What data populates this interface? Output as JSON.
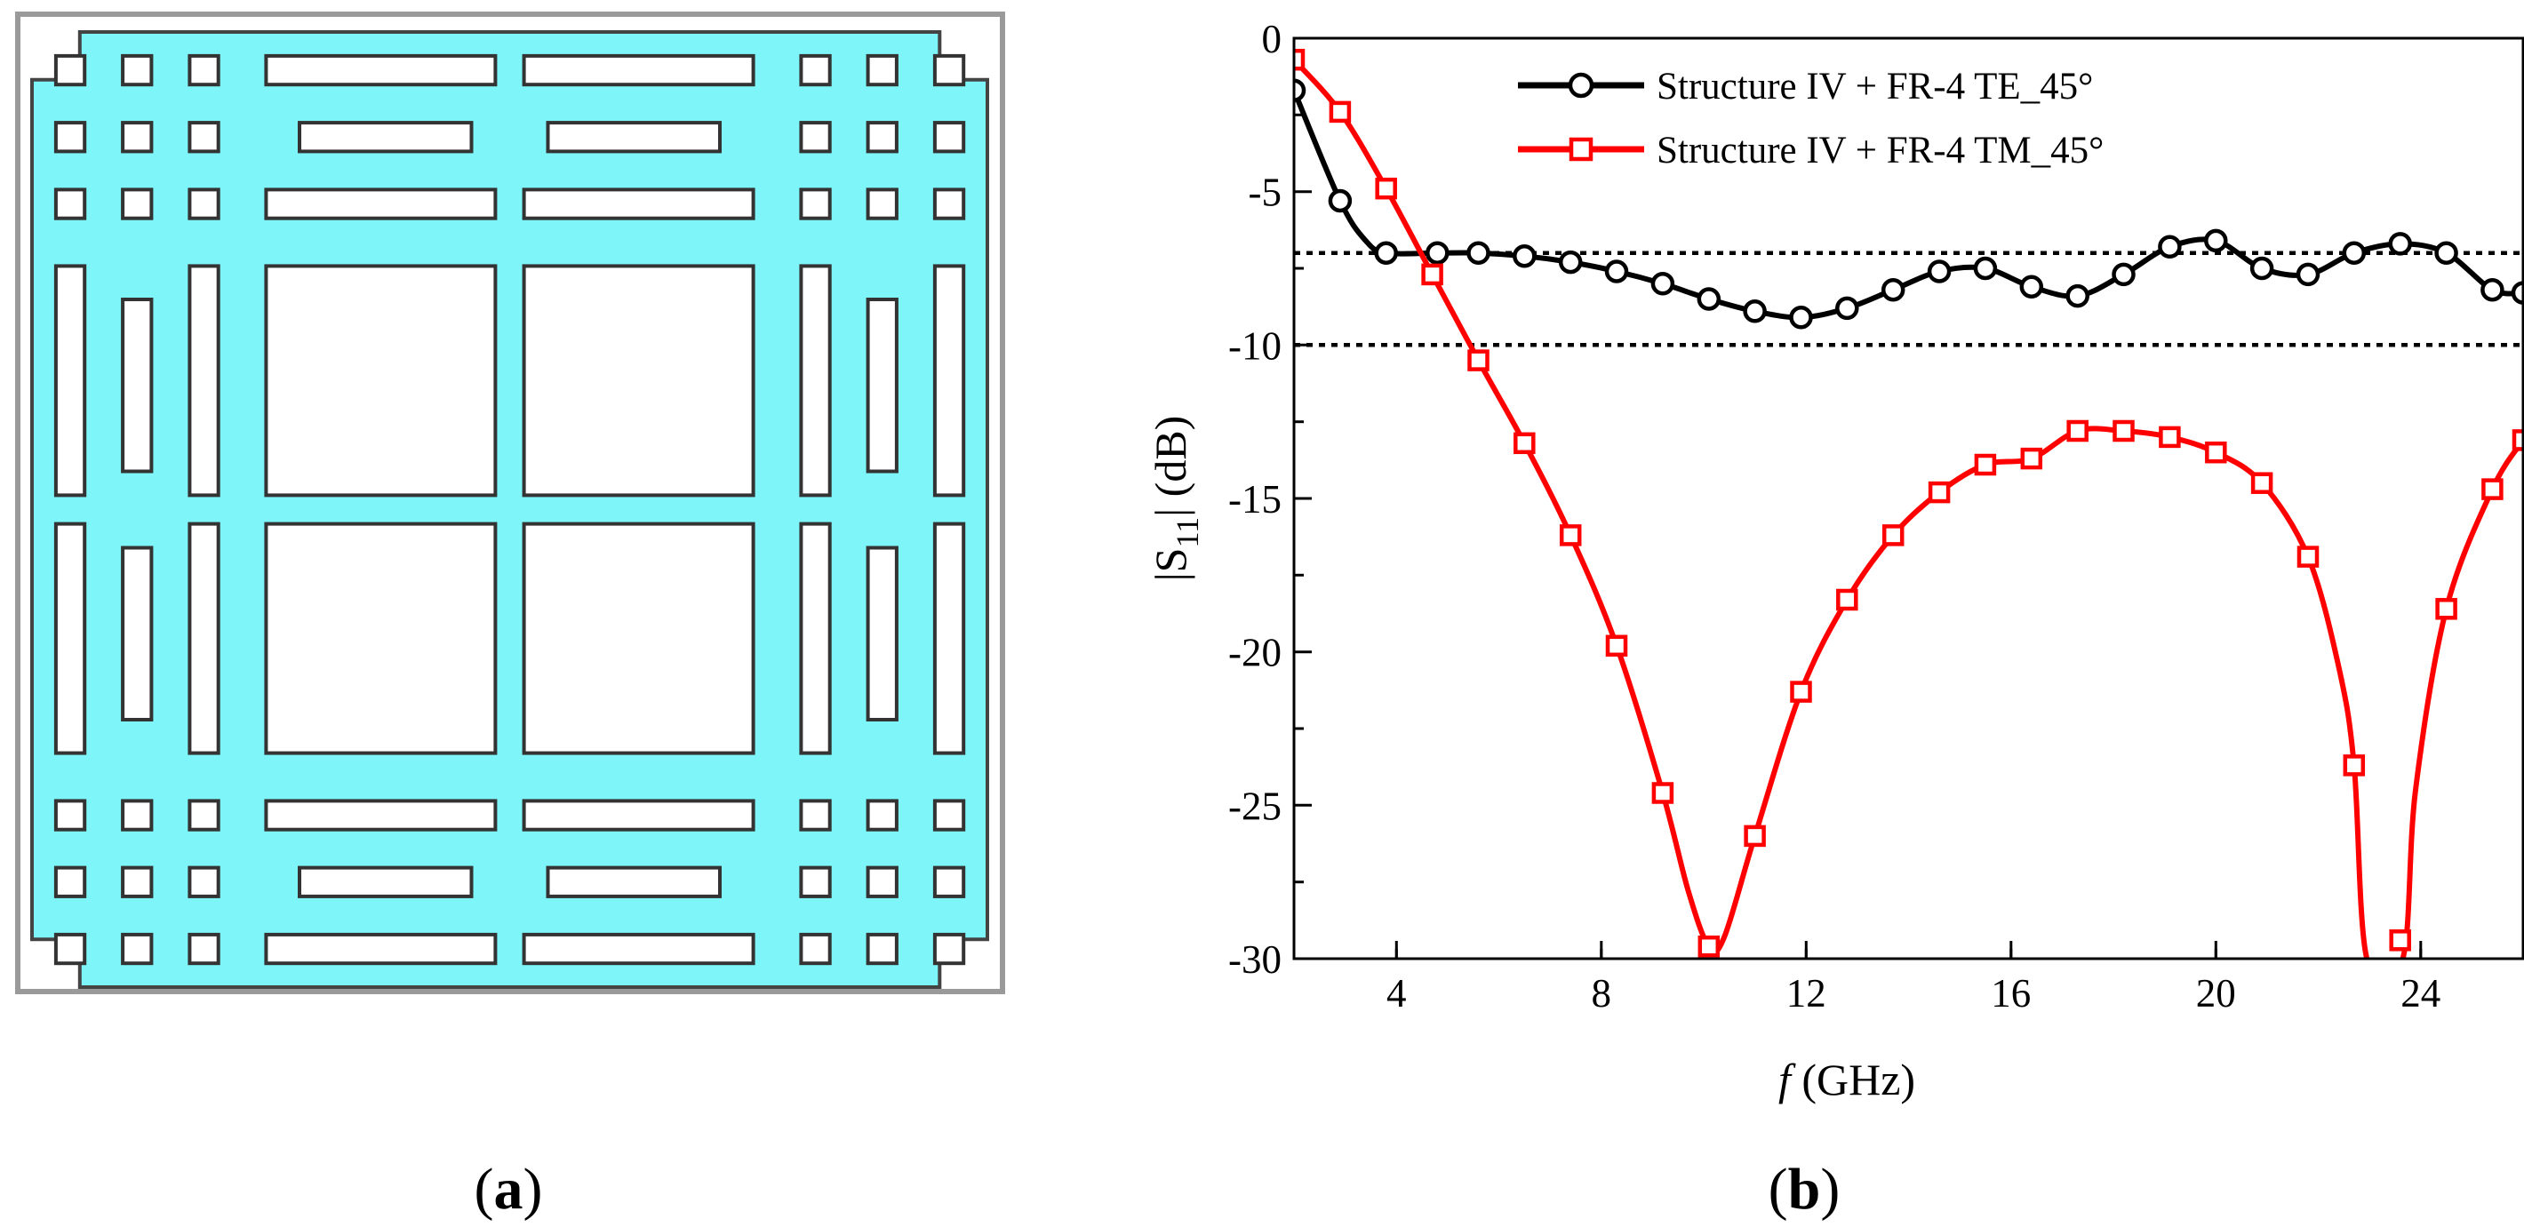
{
  "panels": {
    "a": {
      "caption_open": "(",
      "caption_letter": "a",
      "caption_close": ")"
    },
    "b": {
      "caption_open": "(",
      "caption_letter": "b",
      "caption_close": ")"
    }
  },
  "colors": {
    "metal": "#7ef5f8",
    "substrate_shadow": "#aaaaaa",
    "te": "#000000",
    "tm": "#ff0000"
  },
  "chart_data": {
    "type": "line",
    "xlabel_italic": "f",
    "xlabel_rest": " (GHz)",
    "ylabel_text": "|S",
    "ylabel_sub": "11",
    "ylabel_rest": "| (dB)",
    "xlim": [
      2,
      26
    ],
    "ylim": [
      -30,
      0
    ],
    "xticks": [
      4,
      8,
      12,
      16,
      20,
      24
    ],
    "xtick_labels": [
      "4",
      "8",
      "12",
      "16",
      "20",
      "24"
    ],
    "yticks": [
      0,
      -5,
      -10,
      -15,
      -20,
      -25,
      -30
    ],
    "ytick_labels": [
      "0",
      "-5",
      "-10",
      "-15",
      "-20",
      "-25",
      "-30"
    ],
    "reference_lines": [
      -7,
      -10
    ],
    "series": [
      {
        "name": "Structure IV + FR-4 TE_45°",
        "marker": "circle",
        "x": [
          2,
          2.9,
          3.8,
          4.8,
          5.6,
          6.5,
          7.4,
          8.3,
          9.2,
          10.1,
          11,
          11.9,
          12.8,
          13.7,
          14.6,
          15.5,
          16.4,
          17.3,
          18.2,
          19.1,
          20,
          20.9,
          21.8,
          22.7,
          23.6,
          24.5,
          25.4,
          26
        ],
        "y": [
          -1.7,
          -5.3,
          -7.0,
          -7.0,
          -7.0,
          -7.1,
          -7.3,
          -7.6,
          -8.0,
          -8.5,
          -8.9,
          -9.1,
          -8.8,
          -8.2,
          -7.6,
          -7.5,
          -8.1,
          -8.4,
          -7.7,
          -6.8,
          -6.6,
          -7.5,
          -7.7,
          -7.0,
          -6.7,
          -7.0,
          -8.2,
          -8.3
        ],
        "curve": [
          [
            2,
            -1.7
          ],
          [
            2.9,
            -5.3
          ],
          [
            3.4,
            -6.6
          ],
          [
            3.8,
            -7.0
          ],
          [
            4.8,
            -7.0
          ],
          [
            5.6,
            -7.0
          ],
          [
            6.5,
            -7.1
          ],
          [
            7.4,
            -7.3
          ],
          [
            8.3,
            -7.6
          ],
          [
            9.2,
            -8.0
          ],
          [
            10.1,
            -8.5
          ],
          [
            11,
            -8.9
          ],
          [
            11.9,
            -9.1
          ],
          [
            12.8,
            -8.8
          ],
          [
            13.7,
            -8.2
          ],
          [
            14.6,
            -7.6
          ],
          [
            15.5,
            -7.5
          ],
          [
            16.4,
            -8.1
          ],
          [
            17.3,
            -8.4
          ],
          [
            18.2,
            -7.7
          ],
          [
            19.1,
            -6.8
          ],
          [
            20,
            -6.6
          ],
          [
            20.9,
            -7.5
          ],
          [
            21.8,
            -7.7
          ],
          [
            22.7,
            -7.0
          ],
          [
            23.6,
            -6.7
          ],
          [
            24.5,
            -7.0
          ],
          [
            25.4,
            -8.2
          ],
          [
            26,
            -8.3
          ]
        ]
      },
      {
        "name": "Structure IV + FR-4 TM_45°",
        "marker": "square",
        "x": [
          2,
          2.9,
          3.8,
          4.7,
          5.6,
          6.5,
          7.4,
          8.3,
          9.2,
          10.1,
          11,
          11.9,
          12.8,
          13.7,
          14.6,
          15.5,
          16.4,
          17.3,
          18.2,
          19.1,
          20,
          20.9,
          21.8,
          22.7,
          23.6,
          24.5,
          25.4,
          26
        ],
        "y": [
          -0.7,
          -2.4,
          -4.9,
          -7.7,
          -10.5,
          -13.2,
          -16.2,
          -19.8,
          -24.6,
          -29.6,
          -26.0,
          -21.3,
          -18.3,
          -16.2,
          -14.8,
          -13.9,
          -13.7,
          -12.8,
          -12.8,
          -13.0,
          -13.5,
          -14.5,
          -16.9,
          -23.7,
          -29.4,
          -18.6,
          -14.7,
          -13.1
        ],
        "curve": [
          [
            2,
            -0.7
          ],
          [
            2.9,
            -2.4
          ],
          [
            3.8,
            -4.9
          ],
          [
            4.7,
            -7.7
          ],
          [
            5.6,
            -10.5
          ],
          [
            6.5,
            -13.2
          ],
          [
            7.4,
            -16.2
          ],
          [
            8.3,
            -19.8
          ],
          [
            9.2,
            -24.6
          ],
          [
            9.7,
            -27.8
          ],
          [
            10.1,
            -29.6
          ],
          [
            10.4,
            -29.3
          ],
          [
            11,
            -26.0
          ],
          [
            11.9,
            -21.3
          ],
          [
            12.8,
            -18.3
          ],
          [
            13.7,
            -16.2
          ],
          [
            14.6,
            -14.8
          ],
          [
            15.5,
            -13.9
          ],
          [
            16.4,
            -13.7
          ],
          [
            17.3,
            -12.8
          ],
          [
            18.2,
            -12.8
          ],
          [
            19.1,
            -13.0
          ],
          [
            20,
            -13.5
          ],
          [
            20.9,
            -14.5
          ],
          [
            21.8,
            -16.9
          ],
          [
            22.4,
            -20.5
          ],
          [
            22.7,
            -23.7
          ],
          [
            22.95,
            -30
          ],
          [
            23.65,
            -30
          ],
          [
            23.9,
            -24.5
          ],
          [
            24.5,
            -18.6
          ],
          [
            25.4,
            -14.7
          ],
          [
            26,
            -13.1
          ]
        ]
      }
    ]
  }
}
